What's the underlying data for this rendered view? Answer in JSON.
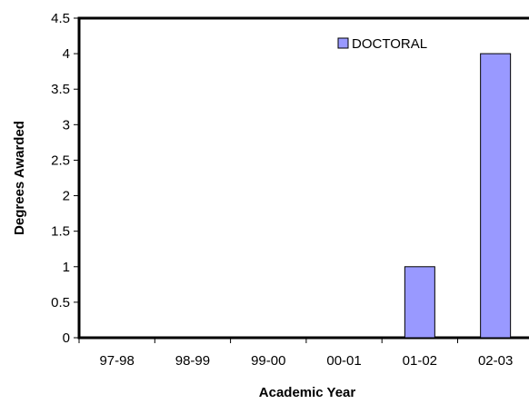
{
  "chart_data": {
    "type": "bar",
    "title": "",
    "xlabel": "Academic Year",
    "ylabel": "Degrees Awarded",
    "categories": [
      "97-98",
      "98-99",
      "99-00",
      "00-01",
      "01-02",
      "02-03"
    ],
    "series": [
      {
        "name": "DOCTORAL",
        "values": [
          0,
          0,
          0,
          0,
          1,
          4
        ]
      }
    ],
    "ylim": [
      0,
      4.5
    ],
    "yticks": [
      "0",
      "0.5",
      "1",
      "1.5",
      "2",
      "2.5",
      "3",
      "3.5",
      "4",
      "4.5"
    ],
    "grid": false,
    "legend_position": "top-right",
    "colors": {
      "bar_fill": "#9999ff",
      "bar_stroke": "#000000",
      "axis": "#000000"
    }
  }
}
